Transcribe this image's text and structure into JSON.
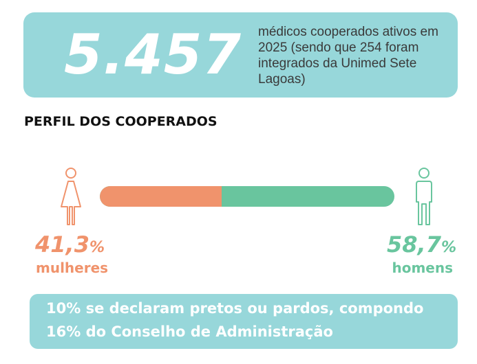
{
  "stat": {
    "number": "5.457",
    "description": "médicos cooperados ativos em 2025 (sendo que 254 foram integrados da Unimed Sete Lagoas)"
  },
  "section_title": "PERFIL DOS COOPERADOS",
  "gender": {
    "female": {
      "value": "41,3",
      "sign": "%",
      "label": "mulheres",
      "share": 41.3,
      "color": "#f0936c",
      "icon": "female-person-icon"
    },
    "male": {
      "value": "58,7",
      "sign": "%",
      "label": "homens",
      "share": 58.7,
      "color": "#69c59e",
      "icon": "male-person-icon"
    }
  },
  "footnote": {
    "line1": "10% se declaram pretos ou pardos, compondo",
    "line2": "16% do Conselho de Administração"
  },
  "colors": {
    "card": "#97d7da",
    "female": "#f0936c",
    "male": "#69c59e"
  }
}
